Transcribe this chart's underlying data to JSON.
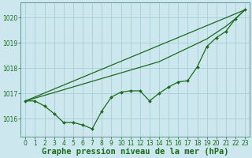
{
  "title": "Graphe pression niveau de la mer (hPa)",
  "background_color": "#cce8ee",
  "grid_color": "#aacdd6",
  "line_color": "#1a6b1a",
  "xlim": [
    -0.5,
    23.5
  ],
  "ylim": [
    1015.3,
    1020.6
  ],
  "xticks": [
    0,
    1,
    2,
    3,
    4,
    5,
    6,
    7,
    8,
    9,
    10,
    11,
    12,
    13,
    14,
    15,
    16,
    17,
    18,
    19,
    20,
    21,
    22,
    23
  ],
  "yticks": [
    1016,
    1017,
    1018,
    1019,
    1020
  ],
  "series": [
    {
      "x": [
        0,
        1,
        2,
        3,
        4,
        5,
        6,
        7,
        8,
        9,
        10,
        11,
        12,
        13,
        14,
        15,
        16,
        17,
        18,
        19,
        20,
        21,
        22,
        23
      ],
      "y": [
        1016.7,
        1016.7,
        1016.5,
        1016.2,
        1015.85,
        1015.85,
        1015.75,
        1015.6,
        1016.3,
        1016.85,
        1017.05,
        1017.1,
        1017.1,
        1016.7,
        1017.0,
        1017.25,
        1017.45,
        1017.5,
        1018.05,
        1018.85,
        1019.2,
        1019.45,
        1019.95,
        1020.3
      ],
      "marker": true
    },
    {
      "x": [
        0,
        23
      ],
      "y": [
        1016.7,
        1020.3
      ],
      "marker": false
    },
    {
      "x": [
        0,
        14,
        19,
        20,
        21,
        22,
        23
      ],
      "y": [
        1016.7,
        1018.25,
        1019.15,
        1019.4,
        1019.65,
        1019.95,
        1020.3
      ],
      "marker": false
    }
  ],
  "title_fontsize": 7.5,
  "tick_fontsize": 5.5,
  "border_color": "#558888",
  "figsize": [
    3.2,
    2.0
  ],
  "dpi": 100
}
